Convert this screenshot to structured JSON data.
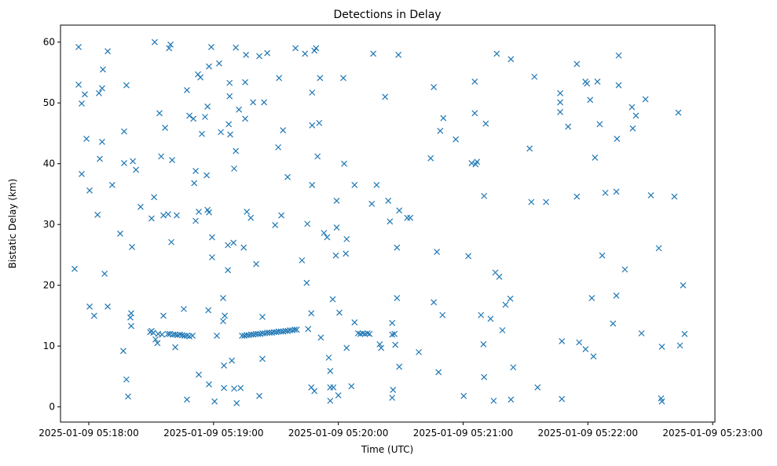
{
  "chart_data": {
    "type": "scatter",
    "title": "Detections in Delay",
    "xlabel": "Time (UTC)",
    "ylabel": "Bistatic Delay (km)",
    "x_units": "seconds after 2025-01-09 05:18:00",
    "xlim": [
      -13.6,
      301.1
    ],
    "ylim": [
      -2.5,
      62.8
    ],
    "grid": false,
    "marker": "x",
    "color": "#1f77b4",
    "x_ticks": [
      {
        "value": 0,
        "label": "2025-01-09 05:18:00"
      },
      {
        "value": 60,
        "label": "2025-01-09 05:19:00"
      },
      {
        "value": 120,
        "label": "2025-01-09 05:20:00"
      },
      {
        "value": 180,
        "label": "2025-01-09 05:21:00"
      },
      {
        "value": 240,
        "label": "2025-01-09 05:22:00"
      },
      {
        "value": 300,
        "label": "2025-01-09 05:23:00"
      }
    ],
    "y_ticks": [
      {
        "value": 0,
        "label": "0"
      },
      {
        "value": 10,
        "label": "10"
      },
      {
        "value": 20,
        "label": "20"
      },
      {
        "value": 30,
        "label": "30"
      },
      {
        "value": 40,
        "label": "40"
      },
      {
        "value": 50,
        "label": "50"
      },
      {
        "value": 60,
        "label": "60"
      }
    ],
    "points": [
      [
        -6.8,
        22.7
      ],
      [
        -4.9,
        59.2
      ],
      [
        -4.9,
        53.0
      ],
      [
        -3.4,
        49.9
      ],
      [
        -1.9,
        51.4
      ],
      [
        -3.4,
        38.3
      ],
      [
        -1.1,
        44.1
      ],
      [
        0.4,
        35.6
      ],
      [
        0.4,
        16.5
      ],
      [
        2.6,
        15.0
      ],
      [
        4.2,
        31.6
      ],
      [
        4.9,
        51.6
      ],
      [
        5.3,
        40.8
      ],
      [
        6.4,
        52.4
      ],
      [
        6.4,
        43.6
      ],
      [
        6.8,
        55.5
      ],
      [
        7.6,
        21.9
      ],
      [
        9.1,
        58.5
      ],
      [
        9.1,
        16.5
      ],
      [
        11.3,
        36.5
      ],
      [
        15.1,
        28.5
      ],
      [
        16.6,
        9.2
      ],
      [
        17.0,
        45.3
      ],
      [
        17.0,
        40.1
      ],
      [
        18.1,
        52.9
      ],
      [
        18.1,
        4.5
      ],
      [
        18.9,
        1.7
      ],
      [
        20.0,
        14.7
      ],
      [
        20.4,
        15.4
      ],
      [
        20.4,
        13.3
      ],
      [
        20.8,
        26.3
      ],
      [
        21.2,
        40.4
      ],
      [
        22.7,
        39.0
      ],
      [
        24.9,
        32.9
      ],
      [
        30.2,
        31.0
      ],
      [
        31.4,
        34.5
      ],
      [
        31.7,
        60.0
      ],
      [
        30.2,
        12.5
      ],
      [
        34.0,
        48.3
      ],
      [
        34.8,
        41.2
      ],
      [
        35.9,
        31.5
      ],
      [
        36.7,
        45.9
      ],
      [
        38.2,
        31.7
      ],
      [
        38.6,
        59.0
      ],
      [
        39.3,
        59.6
      ],
      [
        40.1,
        40.6
      ],
      [
        39.7,
        27.1
      ],
      [
        41.6,
        9.8
      ],
      [
        42.3,
        31.5
      ],
      [
        35.9,
        15.0
      ],
      [
        45.7,
        16.1
      ],
      [
        47.2,
        52.1
      ],
      [
        47.2,
        1.2
      ],
      [
        48.4,
        47.9
      ],
      [
        50.3,
        47.4
      ],
      [
        50.7,
        36.8
      ],
      [
        51.4,
        38.8
      ],
      [
        51.4,
        30.6
      ],
      [
        52.5,
        54.7
      ],
      [
        52.9,
        32.1
      ],
      [
        52.9,
        5.3
      ],
      [
        53.7,
        54.2
      ],
      [
        54.4,
        44.9
      ],
      [
        55.9,
        47.7
      ],
      [
        56.7,
        38.1
      ],
      [
        57.1,
        49.4
      ],
      [
        57.1,
        32.4
      ],
      [
        57.8,
        32.0
      ],
      [
        57.5,
        15.9
      ],
      [
        57.8,
        3.7
      ],
      [
        57.8,
        56.0
      ],
      [
        58.9,
        59.2
      ],
      [
        59.3,
        27.9
      ],
      [
        59.3,
        24.6
      ],
      [
        60.5,
        0.9
      ],
      [
        61.6,
        11.7
      ],
      [
        62.7,
        56.5
      ],
      [
        63.5,
        45.2
      ],
      [
        64.6,
        17.9
      ],
      [
        64.6,
        14.1
      ],
      [
        65.4,
        15.0
      ],
      [
        65.0,
        6.8
      ],
      [
        65.0,
        3.1
      ],
      [
        66.9,
        26.6
      ],
      [
        66.9,
        22.5
      ],
      [
        67.7,
        51.1
      ],
      [
        67.7,
        53.3
      ],
      [
        67.3,
        46.5
      ],
      [
        68.0,
        44.8
      ],
      [
        68.8,
        7.6
      ],
      [
        69.6,
        27.0
      ],
      [
        69.9,
        3.0
      ],
      [
        69.9,
        39.2
      ],
      [
        70.7,
        42.1
      ],
      [
        70.7,
        59.1
      ],
      [
        71.1,
        0.6
      ],
      [
        72.2,
        48.9
      ],
      [
        73.0,
        3.1
      ],
      [
        74.5,
        26.2
      ],
      [
        75.2,
        53.4
      ],
      [
        75.2,
        47.4
      ],
      [
        75.6,
        57.9
      ],
      [
        76.0,
        32.1
      ],
      [
        77.9,
        31.1
      ],
      [
        79.0,
        50.1
      ],
      [
        80.5,
        23.5
      ],
      [
        82.0,
        1.8
      ],
      [
        82.0,
        57.7
      ],
      [
        83.5,
        14.8
      ],
      [
        83.5,
        7.9
      ],
      [
        84.3,
        50.1
      ],
      [
        85.8,
        58.2
      ],
      [
        89.6,
        29.9
      ],
      [
        91.5,
        54.1
      ],
      [
        92.6,
        31.5
      ],
      [
        91.1,
        42.7
      ],
      [
        93.4,
        45.5
      ],
      [
        95.6,
        37.8
      ],
      [
        99.4,
        59.0
      ],
      [
        102.5,
        24.1
      ],
      [
        104.0,
        58.1
      ],
      [
        104.8,
        20.4
      ],
      [
        105.1,
        30.1
      ],
      [
        105.5,
        12.8
      ],
      [
        107.0,
        15.4
      ],
      [
        107.4,
        51.7
      ],
      [
        107.4,
        46.3
      ],
      [
        107.4,
        36.5
      ],
      [
        108.5,
        58.6
      ],
      [
        109.3,
        59.0
      ],
      [
        110.0,
        41.2
      ],
      [
        110.8,
        46.7
      ],
      [
        111.2,
        54.1
      ],
      [
        107.0,
        3.2
      ],
      [
        108.5,
        2.6
      ],
      [
        111.6,
        11.4
      ],
      [
        113.1,
        28.6
      ],
      [
        114.6,
        27.9
      ],
      [
        115.4,
        8.1
      ],
      [
        116.1,
        5.9
      ],
      [
        116.1,
        3.2
      ],
      [
        117.6,
        3.2
      ],
      [
        116.1,
        1.0
      ],
      [
        117.3,
        17.7
      ],
      [
        119.2,
        33.9
      ],
      [
        119.2,
        29.5
      ],
      [
        118.8,
        24.9
      ],
      [
        120.0,
        1.9
      ],
      [
        120.5,
        15.5
      ],
      [
        122.4,
        54.1
      ],
      [
        122.8,
        40.0
      ],
      [
        123.6,
        25.2
      ],
      [
        124.0,
        27.6
      ],
      [
        124.0,
        9.7
      ],
      [
        126.3,
        3.4
      ],
      [
        127.8,
        36.5
      ],
      [
        127.8,
        13.9
      ],
      [
        136.1,
        33.4
      ],
      [
        136.8,
        58.1
      ],
      [
        138.4,
        36.5
      ],
      [
        139.9,
        10.3
      ],
      [
        140.6,
        9.7
      ],
      [
        142.5,
        51.0
      ],
      [
        144.0,
        33.9
      ],
      [
        144.8,
        30.5
      ],
      [
        145.9,
        11.9
      ],
      [
        145.9,
        13.8
      ],
      [
        147.0,
        12.0
      ],
      [
        146.3,
        2.8
      ],
      [
        145.9,
        1.5
      ],
      [
        147.4,
        10.2
      ],
      [
        148.2,
        17.9
      ],
      [
        148.2,
        26.2
      ],
      [
        148.9,
        57.9
      ],
      [
        149.3,
        32.3
      ],
      [
        149.3,
        6.6
      ],
      [
        153.1,
        31.1
      ],
      [
        154.6,
        31.1
      ],
      [
        158.7,
        9.0
      ],
      [
        164.4,
        40.9
      ],
      [
        165.9,
        52.6
      ],
      [
        165.9,
        17.2
      ],
      [
        167.4,
        25.5
      ],
      [
        168.2,
        5.7
      ],
      [
        169.0,
        45.4
      ],
      [
        170.1,
        15.1
      ],
      [
        170.5,
        47.5
      ],
      [
        176.5,
        44.0
      ],
      [
        180.3,
        1.8
      ],
      [
        182.5,
        24.8
      ],
      [
        184.1,
        40.1
      ],
      [
        186.0,
        39.9
      ],
      [
        186.7,
        40.3
      ],
      [
        185.6,
        53.5
      ],
      [
        185.6,
        48.3
      ],
      [
        188.6,
        15.1
      ],
      [
        189.8,
        10.3
      ],
      [
        190.1,
        34.7
      ],
      [
        190.1,
        4.9
      ],
      [
        190.9,
        46.6
      ],
      [
        193.2,
        14.5
      ],
      [
        194.7,
        1.0
      ],
      [
        195.5,
        22.1
      ],
      [
        196.2,
        58.1
      ],
      [
        197.4,
        21.4
      ],
      [
        198.9,
        12.6
      ],
      [
        200.4,
        16.8
      ],
      [
        202.7,
        17.8
      ],
      [
        203.0,
        57.2
      ],
      [
        203.0,
        1.2
      ],
      [
        204.1,
        6.5
      ],
      [
        212.0,
        42.5
      ],
      [
        212.8,
        33.7
      ],
      [
        214.3,
        54.3
      ],
      [
        215.8,
        3.2
      ],
      [
        219.9,
        33.7
      ],
      [
        226.7,
        51.6
      ],
      [
        226.7,
        50.1
      ],
      [
        226.7,
        48.5
      ],
      [
        227.5,
        10.8
      ],
      [
        227.5,
        1.3
      ],
      [
        230.5,
        46.1
      ],
      [
        234.7,
        56.4
      ],
      [
        234.7,
        34.6
      ],
      [
        235.8,
        10.6
      ],
      [
        238.8,
        53.5
      ],
      [
        239.6,
        53.2
      ],
      [
        238.9,
        9.5
      ],
      [
        241.1,
        50.5
      ],
      [
        241.9,
        17.9
      ],
      [
        242.7,
        8.3
      ],
      [
        243.4,
        41.0
      ],
      [
        244.6,
        53.5
      ],
      [
        245.7,
        46.5
      ],
      [
        246.9,
        24.9
      ],
      [
        248.4,
        35.2
      ],
      [
        252.1,
        13.7
      ],
      [
        253.7,
        35.4
      ],
      [
        253.7,
        18.3
      ],
      [
        254.0,
        44.1
      ],
      [
        254.8,
        57.8
      ],
      [
        254.8,
        52.9
      ],
      [
        257.8,
        22.6
      ],
      [
        261.2,
        49.3
      ],
      [
        261.6,
        45.8
      ],
      [
        263.1,
        47.9
      ],
      [
        265.8,
        12.1
      ],
      [
        267.7,
        50.6
      ],
      [
        270.3,
        34.8
      ],
      [
        274.1,
        26.1
      ],
      [
        275.2,
        1.4
      ],
      [
        275.6,
        0.9
      ],
      [
        275.6,
        9.9
      ],
      [
        281.6,
        34.6
      ],
      [
        283.5,
        48.4
      ],
      [
        284.3,
        10.1
      ],
      [
        285.8,
        20.0
      ],
      [
        286.5,
        12.0
      ],
      [
        29.5,
        12.3
      ],
      [
        31.0,
        12.2
      ],
      [
        32.1,
        11.1
      ],
      [
        33.0,
        10.5
      ],
      [
        33.4,
        12.0
      ],
      [
        35.2,
        11.9
      ],
      [
        38.0,
        12.0
      ],
      [
        39.0,
        12.0
      ],
      [
        40.5,
        11.9
      ],
      [
        41.6,
        11.9
      ],
      [
        42.7,
        11.8
      ],
      [
        43.8,
        11.9
      ],
      [
        44.9,
        11.8
      ],
      [
        46.0,
        11.7
      ],
      [
        47.2,
        11.7
      ],
      [
        48.4,
        11.6
      ],
      [
        49.9,
        11.7
      ],
      [
        73.7,
        11.7
      ],
      [
        74.8,
        11.7
      ],
      [
        75.9,
        11.8
      ],
      [
        77.0,
        11.8
      ],
      [
        78.1,
        11.9
      ],
      [
        79.2,
        11.9
      ],
      [
        80.3,
        12.0
      ],
      [
        81.4,
        12.0
      ],
      [
        82.5,
        12.0
      ],
      [
        83.6,
        12.1
      ],
      [
        84.7,
        12.1
      ],
      [
        85.8,
        12.2
      ],
      [
        86.9,
        12.2
      ],
      [
        88.0,
        12.2
      ],
      [
        89.1,
        12.3
      ],
      [
        90.2,
        12.3
      ],
      [
        91.3,
        12.4
      ],
      [
        92.4,
        12.4
      ],
      [
        93.5,
        12.4
      ],
      [
        94.6,
        12.5
      ],
      [
        95.7,
        12.5
      ],
      [
        96.8,
        12.6
      ],
      [
        97.9,
        12.6
      ],
      [
        99.0,
        12.7
      ],
      [
        100.0,
        12.7
      ],
      [
        129.5,
        12.1
      ],
      [
        130.6,
        12.0
      ],
      [
        131.7,
        12.1
      ],
      [
        132.8,
        12.0
      ],
      [
        134.0,
        12.1
      ],
      [
        135.0,
        12.0
      ]
    ]
  }
}
